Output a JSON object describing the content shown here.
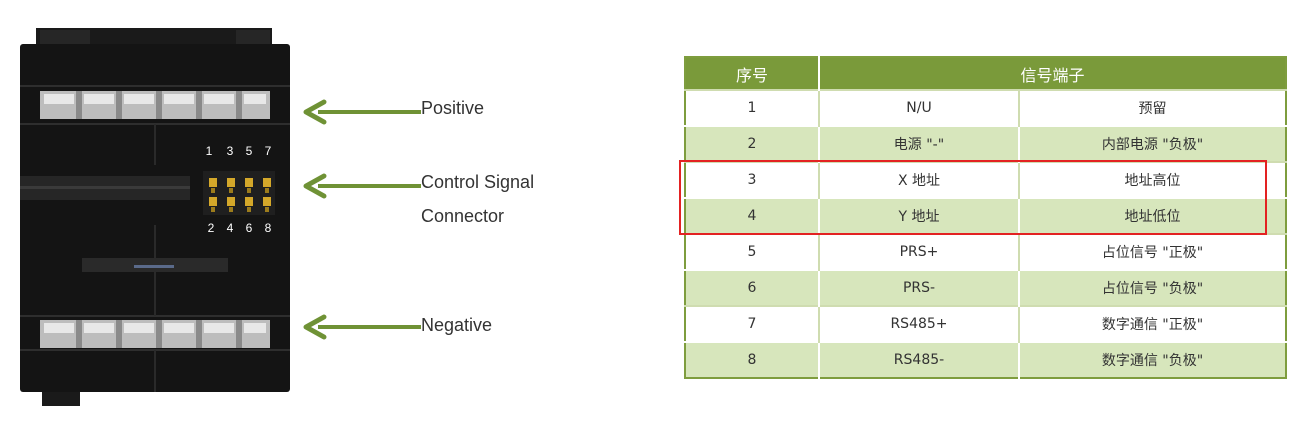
{
  "callouts": {
    "positive": "Positive",
    "control_line1": "Control Signal",
    "control_line2": "Connector",
    "negative": "Negative"
  },
  "dip_switch": {
    "top_numbers": [
      "1",
      "3",
      "5",
      "7"
    ],
    "bottom_numbers": [
      "2",
      "4",
      "6",
      "8"
    ]
  },
  "table": {
    "headers": [
      "序号",
      "信号端子"
    ],
    "rows": [
      [
        "1",
        "N/U",
        "预留"
      ],
      [
        "2",
        "电源 \"-\"",
        "内部电源 \"负极\""
      ],
      [
        "3",
        "X 地址",
        "地址高位"
      ],
      [
        "4",
        "Y 地址",
        "地址低位"
      ],
      [
        "5",
        "PRS+",
        "占位信号 \"正极\""
      ],
      [
        "6",
        "PRS-",
        "占位信号 \"负极\""
      ],
      [
        "7",
        "RS485+",
        "数字通信 \"正极\""
      ],
      [
        "8",
        "RS485-",
        "数字通信 \"负极\""
      ]
    ]
  },
  "colors": {
    "arrow": "#6f9235",
    "header_bg": "#7a9a3a",
    "row_alt_bg": "#d7e6bc",
    "highlight_border": "#e32222",
    "device_body": "#141414"
  }
}
